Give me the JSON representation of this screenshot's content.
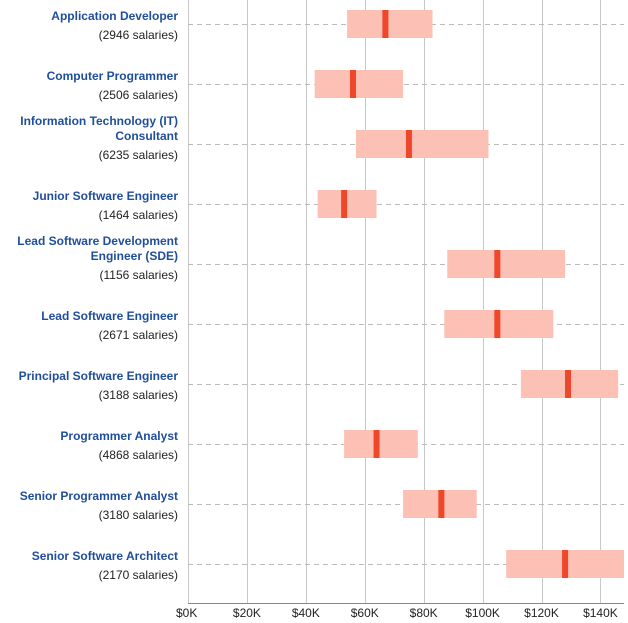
{
  "chart_data": {
    "type": "range-bar",
    "title": "",
    "xlabel": "",
    "ylabel": "",
    "xlim": [
      0,
      148000
    ],
    "grid": true,
    "ticks": [
      {
        "value": 0,
        "label": "$0K"
      },
      {
        "value": 20000,
        "label": "$20K"
      },
      {
        "value": 40000,
        "label": "$40K"
      },
      {
        "value": 60000,
        "label": "$60K"
      },
      {
        "value": 80000,
        "label": "$80K"
      },
      {
        "value": 100000,
        "label": "$100K"
      },
      {
        "value": 120000,
        "label": "$120K"
      },
      {
        "value": 140000,
        "label": "$140K"
      }
    ],
    "colors": {
      "range": "#fcc0b4",
      "median": "#f0472a",
      "title": "#1f4e9c",
      "grid": "#c8c8c8",
      "guide": "#bbbbbb"
    },
    "rows": [
      {
        "title_lines": [
          "Application Developer"
        ],
        "count": "(2946 salaries)",
        "low": 54000,
        "median": 67000,
        "high": 83000
      },
      {
        "title_lines": [
          "Computer Programmer"
        ],
        "count": "(2506 salaries)",
        "low": 43000,
        "median": 56000,
        "high": 73000
      },
      {
        "title_lines": [
          "Information Technology (IT)",
          "Consultant"
        ],
        "count": "(6235 salaries)",
        "low": 57000,
        "median": 75000,
        "high": 102000
      },
      {
        "title_lines": [
          "Junior Software Engineer"
        ],
        "count": "(1464 salaries)",
        "low": 44000,
        "median": 53000,
        "high": 64000
      },
      {
        "title_lines": [
          "Lead Software Development",
          "Engineer (SDE)"
        ],
        "count": "(1156 salaries)",
        "low": 88000,
        "median": 105000,
        "high": 128000
      },
      {
        "title_lines": [
          "Lead Software Engineer"
        ],
        "count": "(2671 salaries)",
        "low": 87000,
        "median": 105000,
        "high": 124000
      },
      {
        "title_lines": [
          "Principal Software Engineer"
        ],
        "count": "(3188 salaries)",
        "low": 113000,
        "median": 129000,
        "high": 146000
      },
      {
        "title_lines": [
          "Programmer Analyst"
        ],
        "count": "(4868 salaries)",
        "low": 53000,
        "median": 64000,
        "high": 78000
      },
      {
        "title_lines": [
          "Senior Programmer Analyst"
        ],
        "count": "(3180 salaries)",
        "low": 73000,
        "median": 86000,
        "high": 98000
      },
      {
        "title_lines": [
          "Senior Software Architect"
        ],
        "count": "(2170 salaries)",
        "low": 108000,
        "median": 128000,
        "high": 148000
      }
    ]
  }
}
